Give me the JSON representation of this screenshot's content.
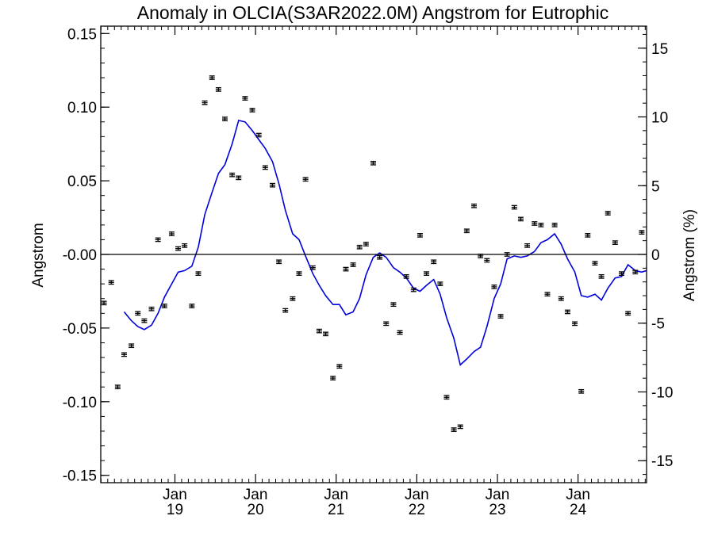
{
  "chart_data": {
    "type": "scatter",
    "title": "Anomaly in OLCIA(S3AR2022.0M) Angstrom for Eutrophic",
    "ylabel": "Angstrom",
    "ylabel_right": "Angstrom (%)",
    "xlabel": "",
    "xlim": [
      2018.08,
      2024.85
    ],
    "ylim": [
      -0.155,
      0.155
    ],
    "ylim_right": [
      -16.6,
      16.6
    ],
    "yticks": [
      {
        "value": 0.15,
        "label": "0.15"
      },
      {
        "value": 0.1,
        "label": "0.10"
      },
      {
        "value": 0.05,
        "label": "0.05"
      },
      {
        "value": 0.0,
        "label": "-0.00"
      },
      {
        "value": -0.05,
        "label": "-0.05"
      },
      {
        "value": -0.1,
        "label": "-0.10"
      },
      {
        "value": -0.15,
        "label": "-0.15"
      }
    ],
    "yticks_right": [
      {
        "value": 15,
        "label": "15"
      },
      {
        "value": 10,
        "label": "10"
      },
      {
        "value": 5,
        "label": "5"
      },
      {
        "value": 0,
        "label": "0"
      },
      {
        "value": -5,
        "label": "-5"
      },
      {
        "value": -10,
        "label": "-10"
      },
      {
        "value": -15,
        "label": "-15"
      }
    ],
    "xticks": [
      {
        "value": 2019.0,
        "month": "Jan",
        "year": "19"
      },
      {
        "value": 2020.0,
        "month": "Jan",
        "year": "20"
      },
      {
        "value": 2021.0,
        "month": "Jan",
        "year": "21"
      },
      {
        "value": 2022.0,
        "month": "Jan",
        "year": "22"
      },
      {
        "value": 2023.0,
        "month": "Jan",
        "year": "23"
      },
      {
        "value": 2024.0,
        "month": "Jan",
        "year": "24"
      }
    ],
    "zero_line": 0,
    "colors": {
      "points": "#000000",
      "smooth": "#0000dd",
      "axes": "#000000",
      "zero": "#000000"
    },
    "series": [
      {
        "kind": "monthly_points_with_error",
        "x": [
          2018.04,
          2018.12,
          2018.21,
          2018.29,
          2018.37,
          2018.46,
          2018.54,
          2018.62,
          2018.71,
          2018.79,
          2018.87,
          2018.96,
          2019.04,
          2019.12,
          2019.21,
          2019.29,
          2019.37,
          2019.46,
          2019.54,
          2019.62,
          2019.71,
          2019.79,
          2019.87,
          2019.96,
          2020.04,
          2020.12,
          2020.21,
          2020.29,
          2020.37,
          2020.46,
          2020.54,
          2020.62,
          2020.71,
          2020.79,
          2020.87,
          2020.96,
          2021.04,
          2021.12,
          2021.21,
          2021.29,
          2021.37,
          2021.46,
          2021.54,
          2021.62,
          2021.71,
          2021.79,
          2021.87,
          2021.96,
          2022.04,
          2022.12,
          2022.21,
          2022.29,
          2022.37,
          2022.46,
          2022.54,
          2022.62,
          2022.71,
          2022.79,
          2022.87,
          2022.96,
          2023.04,
          2023.12,
          2023.21,
          2023.29,
          2023.37,
          2023.46,
          2023.54,
          2023.62,
          2023.71,
          2023.79,
          2023.87,
          2023.96,
          2024.04,
          2024.12,
          2024.21,
          2024.29,
          2024.37,
          2024.46,
          2024.54,
          2024.62,
          2024.71,
          2024.79
        ],
        "y": [
          -0.03,
          -0.033,
          -0.019,
          -0.09,
          -0.068,
          -0.062,
          -0.04,
          -0.045,
          -0.037,
          0.01,
          -0.035,
          0.014,
          0.004,
          0.006,
          -0.035,
          -0.013,
          0.103,
          0.12,
          0.112,
          0.092,
          0.054,
          0.052,
          0.106,
          0.098,
          0.081,
          0.059,
          0.047,
          -0.005,
          -0.038,
          -0.03,
          -0.013,
          0.051,
          -0.009,
          -0.052,
          -0.054,
          -0.084,
          -0.076,
          -0.01,
          -0.007,
          0.005,
          0.007,
          0.062,
          -0.002,
          -0.047,
          -0.034,
          -0.053,
          -0.015,
          -0.024,
          0.013,
          -0.013,
          -0.005,
          -0.02,
          -0.097,
          -0.119,
          -0.117,
          0.016,
          0.033,
          -0.001,
          -0.004,
          -0.022,
          -0.042,
          0.0,
          0.032,
          0.024,
          0.006,
          0.021,
          0.02,
          -0.027,
          0.02,
          -0.03,
          -0.039,
          -0.047,
          -0.093,
          0.013,
          -0.006,
          -0.015,
          0.028,
          0.008,
          -0.013,
          -0.04,
          -0.012,
          0.015
        ]
      },
      {
        "kind": "smoothed_line",
        "x": [
          2018.37,
          2018.46,
          2018.54,
          2018.62,
          2018.71,
          2018.79,
          2018.87,
          2018.96,
          2019.04,
          2019.12,
          2019.21,
          2019.29,
          2019.37,
          2019.46,
          2019.54,
          2019.62,
          2019.71,
          2019.79,
          2019.87,
          2019.96,
          2020.04,
          2020.12,
          2020.21,
          2020.29,
          2020.37,
          2020.46,
          2020.54,
          2020.62,
          2020.71,
          2020.79,
          2020.87,
          2020.96,
          2021.04,
          2021.12,
          2021.21,
          2021.29,
          2021.37,
          2021.46,
          2021.54,
          2021.62,
          2021.71,
          2021.79,
          2021.87,
          2021.96,
          2022.04,
          2022.12,
          2022.21,
          2022.29,
          2022.37,
          2022.46,
          2022.54,
          2022.62,
          2022.71,
          2022.79,
          2022.87,
          2022.96,
          2023.04,
          2023.12,
          2023.21,
          2023.29,
          2023.37,
          2023.46,
          2023.54,
          2023.62,
          2023.71,
          2023.79,
          2023.87,
          2023.96,
          2024.04,
          2024.12,
          2024.21,
          2024.29,
          2024.37,
          2024.46,
          2024.54,
          2024.62,
          2024.71,
          2024.79,
          2024.87
        ],
        "y": [
          -0.039,
          -0.045,
          -0.049,
          -0.051,
          -0.048,
          -0.04,
          -0.029,
          -0.02,
          -0.012,
          -0.011,
          -0.008,
          0.005,
          0.027,
          0.042,
          0.055,
          0.061,
          0.075,
          0.091,
          0.09,
          0.084,
          0.078,
          0.072,
          0.063,
          0.048,
          0.03,
          0.014,
          0.01,
          -0.001,
          -0.013,
          -0.021,
          -0.028,
          -0.034,
          -0.034,
          -0.041,
          -0.039,
          -0.03,
          -0.014,
          -0.002,
          0.001,
          -0.002,
          -0.009,
          -0.012,
          -0.016,
          -0.023,
          -0.025,
          -0.021,
          -0.017,
          -0.027,
          -0.043,
          -0.057,
          -0.075,
          -0.071,
          -0.066,
          -0.063,
          -0.049,
          -0.03,
          -0.02,
          -0.003,
          -0.001,
          -0.002,
          -0.001,
          0.002,
          0.008,
          0.01,
          0.014,
          0.007,
          -0.003,
          -0.012,
          -0.028,
          -0.029,
          -0.027,
          -0.031,
          -0.023,
          -0.016,
          -0.015,
          -0.007,
          -0.011,
          -0.012,
          -0.011
        ]
      }
    ]
  }
}
